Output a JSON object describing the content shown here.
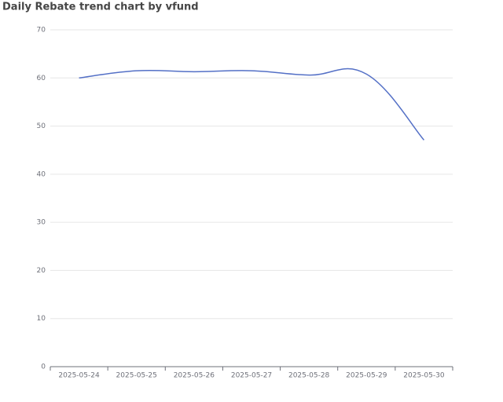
{
  "chart_data": {
    "type": "line",
    "title": "Daily Rebate trend chart by vfund",
    "categories": [
      "2025-05-24",
      "2025-05-25",
      "2025-05-26",
      "2025-05-27",
      "2025-05-28",
      "2025-05-29",
      "2025-05-30"
    ],
    "values": [
      60.0,
      61.5,
      61.3,
      61.5,
      60.6,
      60.8,
      47.1
    ],
    "color": "#5470c6",
    "smooth": true,
    "ylim": [
      0,
      70
    ],
    "yticks": [
      0,
      10,
      20,
      30,
      40,
      50,
      60,
      70
    ],
    "grid": true
  }
}
